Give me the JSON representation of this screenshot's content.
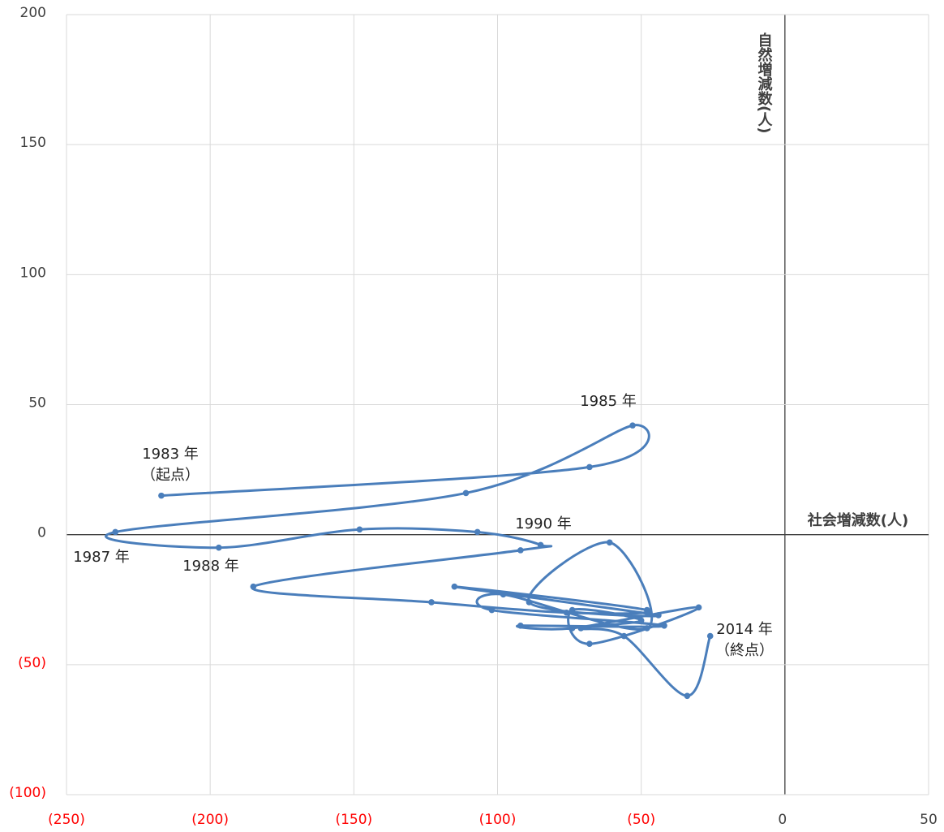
{
  "chart_data": {
    "type": "scatter-line",
    "xlim": [
      -250,
      50
    ],
    "ylim": [
      -100,
      200
    ],
    "xticks": [
      {
        "value": -250,
        "label": "(250)"
      },
      {
        "value": -200,
        "label": "(200)"
      },
      {
        "value": -150,
        "label": "(150)"
      },
      {
        "value": -100,
        "label": "(100)"
      },
      {
        "value": -50,
        "label": "(50)"
      },
      0,
      50
    ],
    "yticks": [
      {
        "value": -100,
        "label": "(100)"
      },
      {
        "value": -50,
        "label": "(50)"
      },
      0,
      50,
      100,
      150,
      200
    ],
    "negative_tick_color": "#ff0000",
    "grid": true,
    "x_axis_label": "社会増減数(人)",
    "y_axis_label": "自然増減数(人)",
    "annotations": [
      [
        "1983 年",
        "（起点）"
      ],
      [
        "1985 年"
      ],
      [
        "1987 年"
      ],
      [
        "1988 年"
      ],
      [
        "1990 年"
      ],
      [
        "2014 年",
        "（終点）"
      ]
    ],
    "series": [
      {
        "color": "#4a7ebb",
        "x": [
          -217,
          -68,
          -53,
          -111,
          -233,
          -197,
          -148,
          -107,
          -85,
          -92,
          -185,
          -123,
          -76,
          -48,
          -115,
          -44,
          -89,
          -61,
          -48,
          -98,
          -102,
          -42,
          -92,
          -74,
          -30,
          -68,
          -74,
          -50,
          -71,
          -56,
          -34,
          -26
        ],
        "values": [
          15,
          26,
          42,
          16,
          1,
          -5,
          2,
          1,
          -4,
          -6,
          -20,
          -26,
          -30,
          -29,
          -20,
          -31,
          -26,
          -3,
          -36,
          -23,
          -29,
          -35,
          -35,
          -36,
          -28,
          -42,
          -29,
          -33,
          -36,
          -39,
          -62,
          -39
        ]
      }
    ]
  }
}
